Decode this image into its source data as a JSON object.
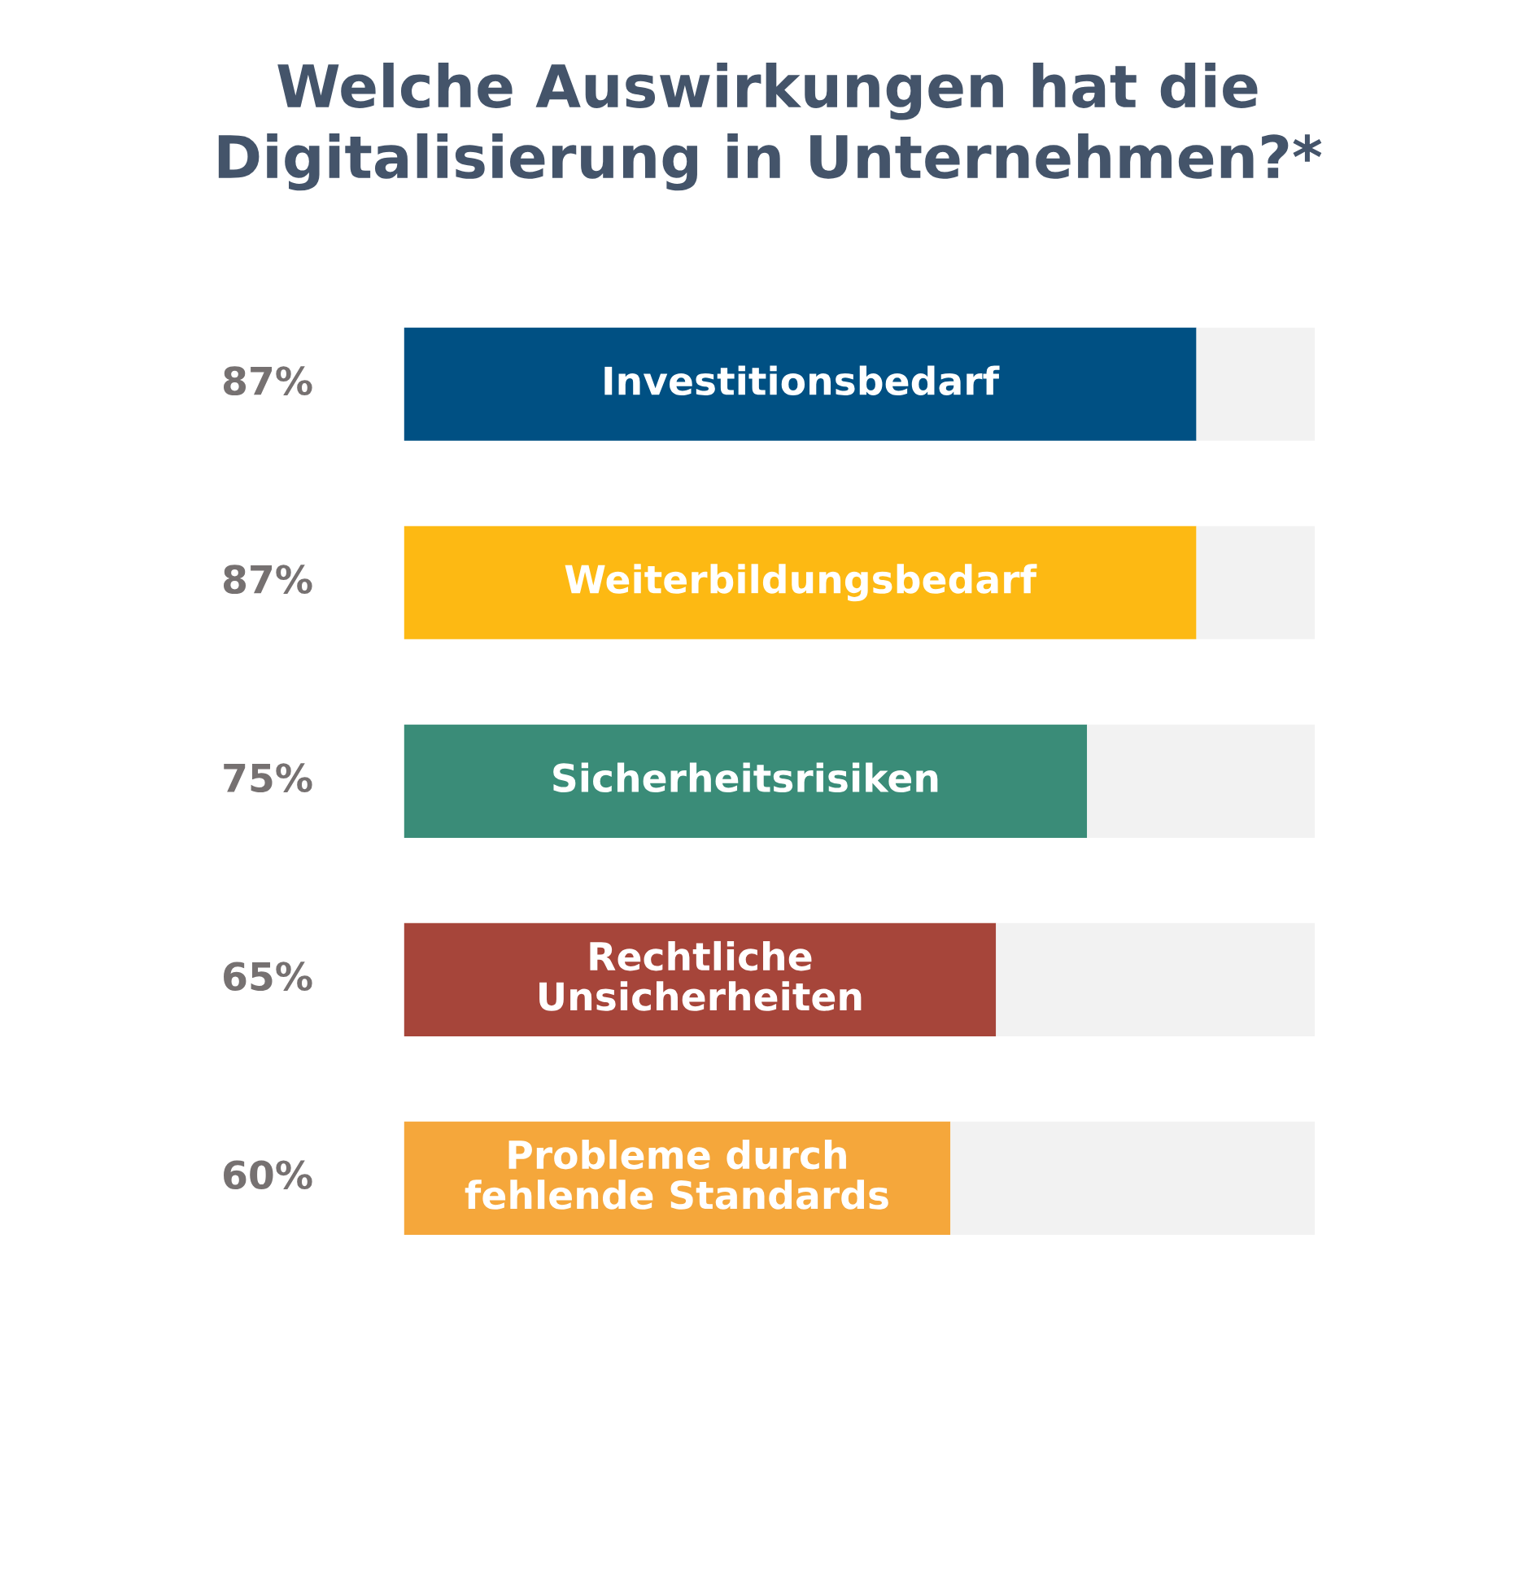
{
  "chart_data": {
    "type": "bar",
    "orientation": "horizontal",
    "stacked": true,
    "title": "Welche Auswirkungen hat die\nDigitalisierung in Unternehmen?*",
    "categories": [
      "Investitionsbedarf",
      "Weiterbildungsbedarf",
      "Sicherheitsrisiken",
      "Rechtliche\nUnsicherheiten",
      "Probleme durch\nfehlende Standards"
    ],
    "series": [
      {
        "colors": [
          "#005083",
          "#fdb913",
          "#3a8c78",
          "#a6453a",
          "#f5a73b"
        ],
        "values": [
          87,
          87,
          75,
          65,
          60
        ],
        "value_labels": [
          "87%",
          "87%",
          "75%",
          "65%",
          "60%"
        ]
      },
      {
        "color": "#f2f2f2",
        "values": [
          13,
          13,
          25,
          35,
          40
        ]
      }
    ],
    "xlim": [
      0,
      100
    ],
    "tick_labels": false
  }
}
